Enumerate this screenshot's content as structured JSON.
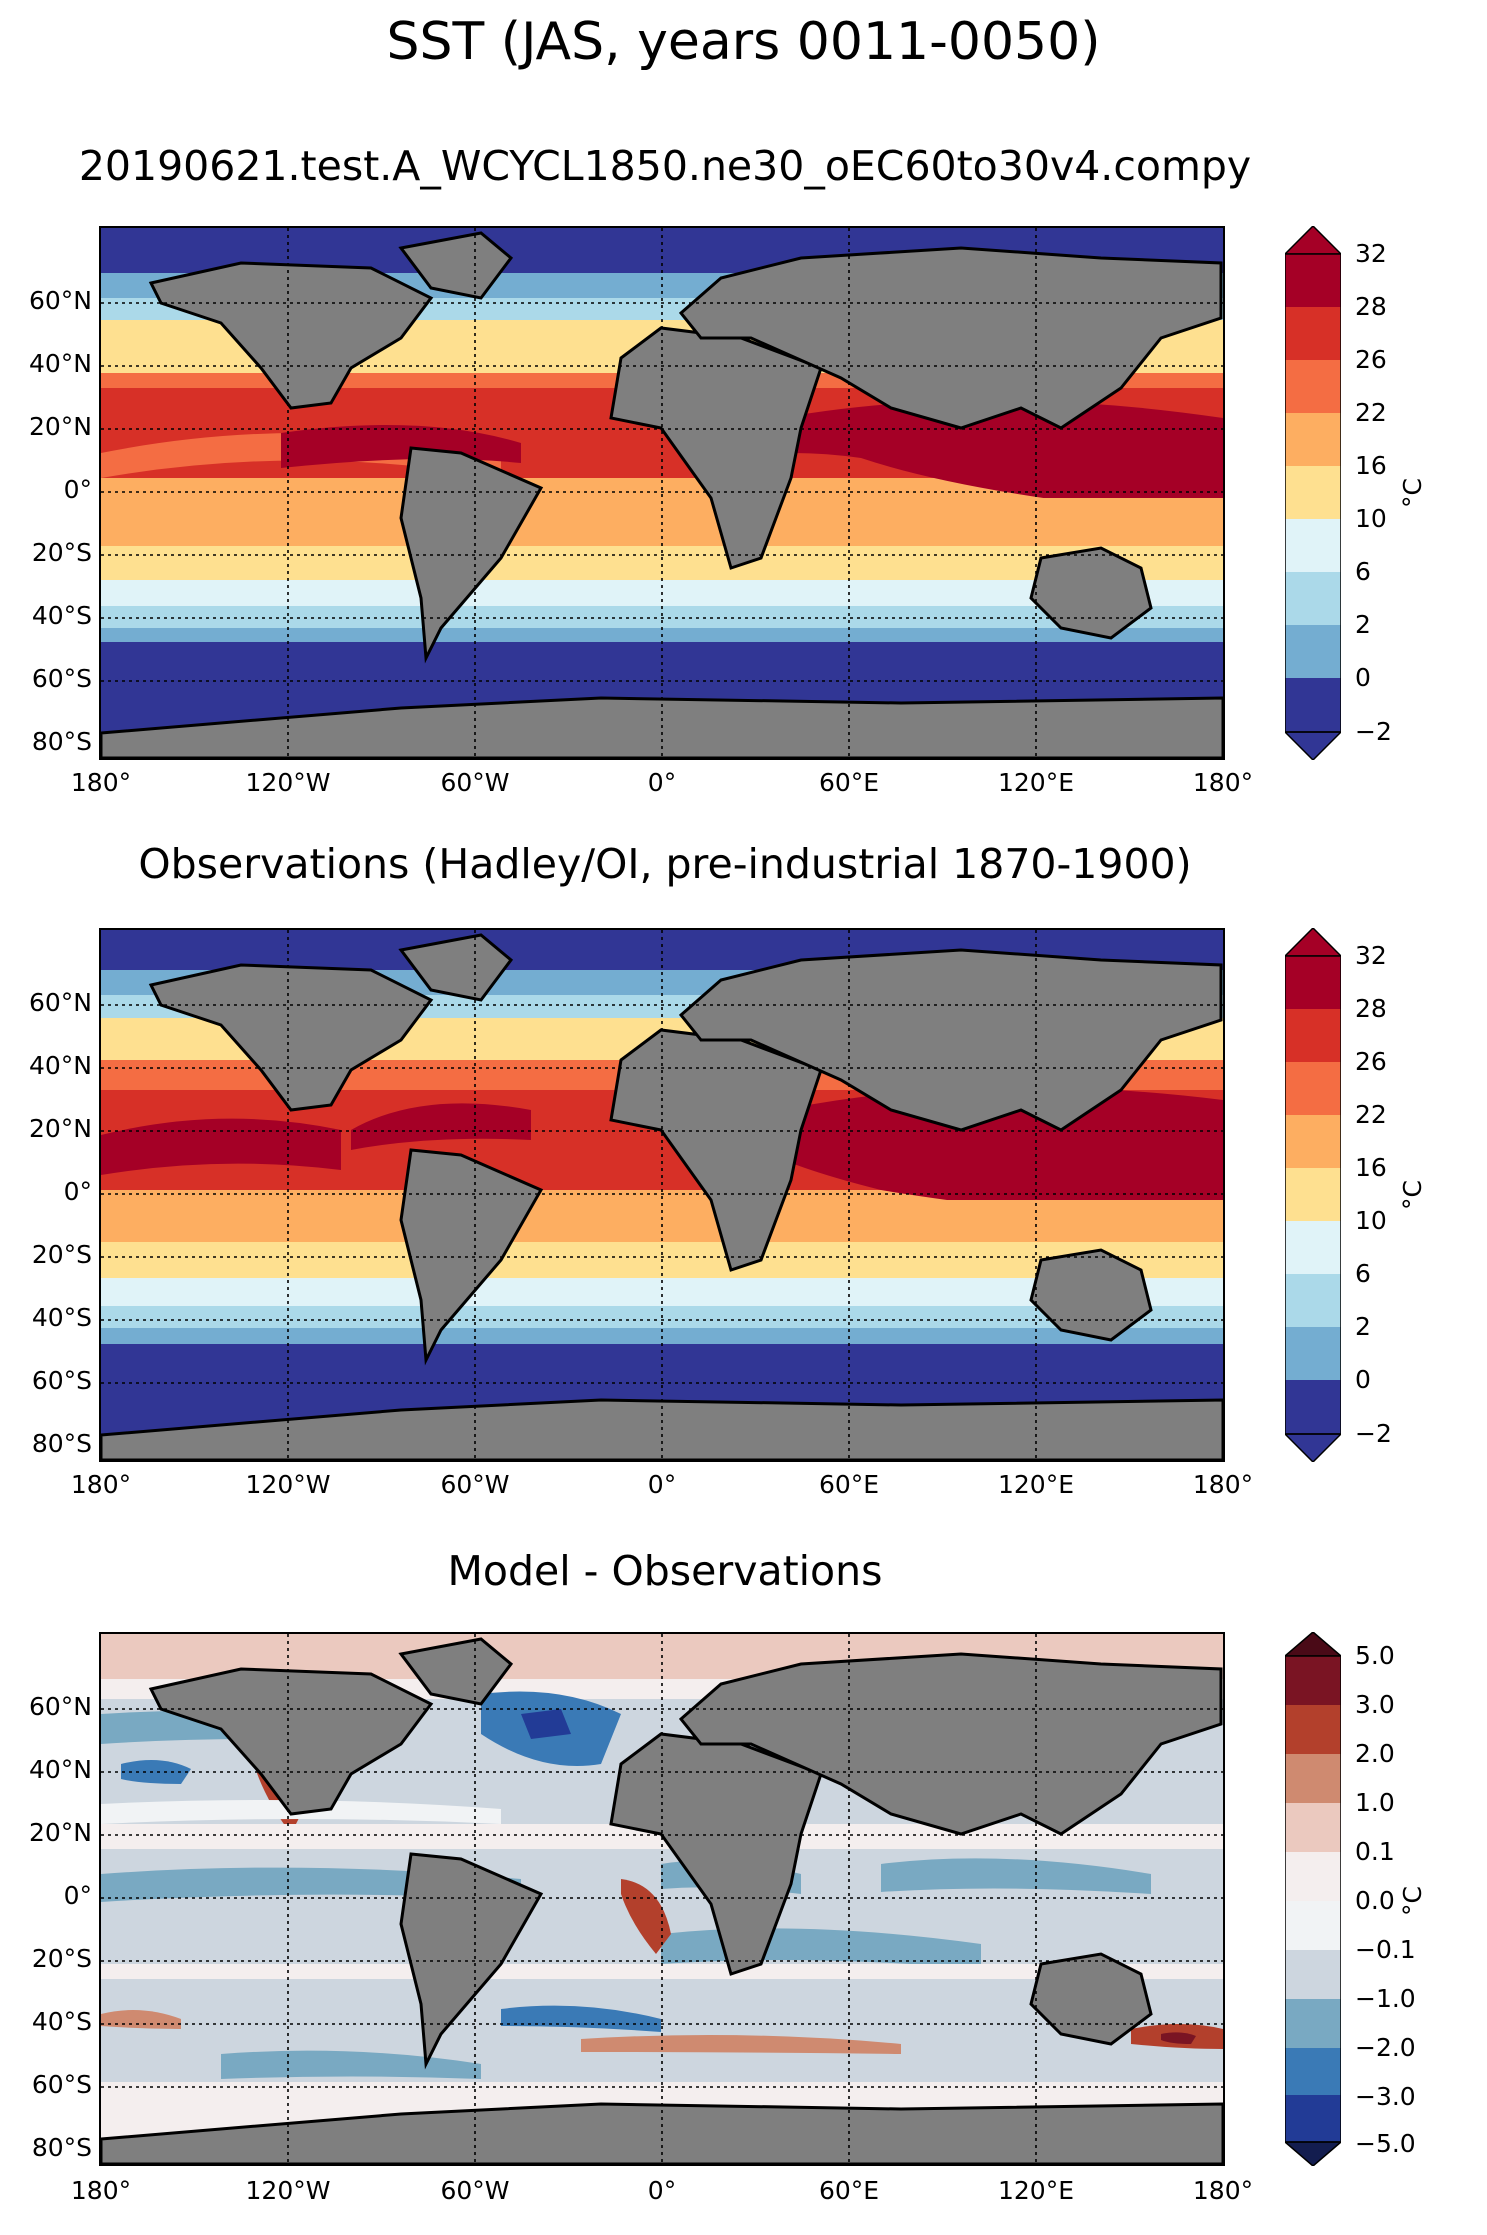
{
  "figure": {
    "title": "SST (JAS, years 0011-0050)"
  },
  "axes": {
    "lat_ticks": [
      "60°N",
      "40°N",
      "20°N",
      "0°",
      "20°S",
      "40°S",
      "60°S",
      "80°S"
    ],
    "lon_ticks": [
      "180°",
      "120°W",
      "60°W",
      "0°",
      "60°E",
      "120°E",
      "180°"
    ]
  },
  "panels": [
    {
      "title": "20190621.test.A_WCYCL1850.ne30_oEC60to30v4.compy",
      "colorbar": {
        "ticks": [
          "32",
          "28",
          "26",
          "22",
          "16",
          "10",
          "6",
          "2",
          "0",
          "−2"
        ],
        "colors": [
          "#a50026",
          "#d73027",
          "#f46d43",
          "#fdae61",
          "#fee090",
          "#e0f3f8",
          "#abd9e9",
          "#74add1",
          "#313695"
        ],
        "unit": "°C"
      }
    },
    {
      "title": "Observations (Hadley/OI, pre-industrial 1870-1900)",
      "colorbar": {
        "ticks": [
          "32",
          "28",
          "26",
          "22",
          "16",
          "10",
          "6",
          "2",
          "0",
          "−2"
        ],
        "colors": [
          "#a50026",
          "#d73027",
          "#f46d43",
          "#fdae61",
          "#fee090",
          "#e0f3f8",
          "#abd9e9",
          "#74add1",
          "#313695"
        ],
        "unit": "°C"
      }
    },
    {
      "title": "Model - Observations",
      "colorbar": {
        "ticks": [
          "5.0",
          "3.0",
          "2.0",
          "1.0",
          "0.1",
          "0.0",
          "−0.1",
          "−1.0",
          "−2.0",
          "−3.0",
          "−5.0"
        ],
        "colors": [
          "#7a1423",
          "#b3402c",
          "#cf8a70",
          "#ebc9bf",
          "#f4eeee",
          "#f1f3f5",
          "#cdd6df",
          "#79a9c2",
          "#3a7ab6",
          "#223b96"
        ],
        "unit": "°C"
      }
    }
  ],
  "map_colors": {
    "land": "#7f7f7f",
    "coast": "#000000",
    "grid": "#000000"
  }
}
